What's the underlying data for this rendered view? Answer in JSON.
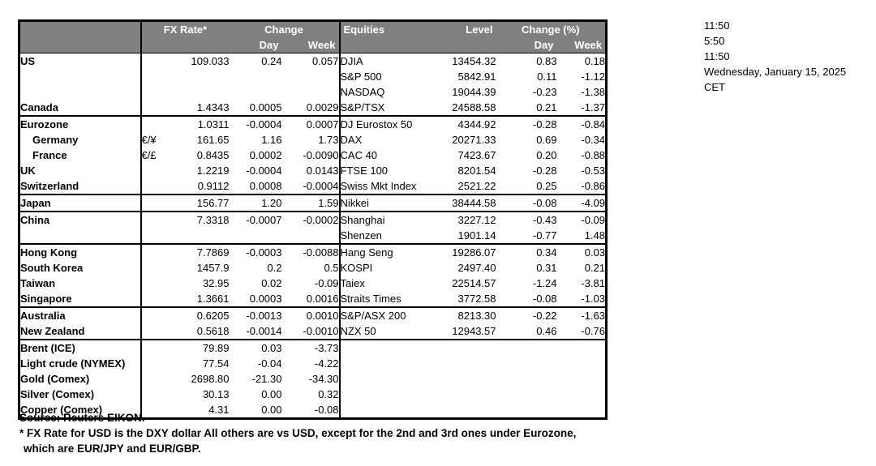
{
  "colors": {
    "header_bg": "#808080",
    "header_text": "#ffffff",
    "border": "#000000"
  },
  "header": {
    "fx_rate": "FX Rate*",
    "change": "Change",
    "day": "Day",
    "week": "Week",
    "equities": "Equities",
    "level": "Level",
    "change_pct": "Change (%)"
  },
  "rows": [
    {
      "label": "US",
      "pair": "",
      "fx": "109.033",
      "day": "0.24",
      "week": "0.057",
      "eq": "DJIA",
      "level": "13454.32",
      "eday": "0.83",
      "eweek": "0.18"
    },
    {
      "label": "",
      "pair": "",
      "fx": "",
      "day": "",
      "week": "",
      "eq": "S&P 500",
      "level": "5842.91",
      "eday": "0.11",
      "eweek": "-1.12"
    },
    {
      "label": "",
      "pair": "",
      "fx": "",
      "day": "",
      "week": "",
      "eq": "NASDAQ",
      "level": "19044.39",
      "eday": "-0.23",
      "eweek": "-1.38"
    },
    {
      "label": "Canada",
      "pair": "",
      "fx": "1.4343",
      "day": "0.0005",
      "week": "0.0029",
      "eq": "S&P/TSX",
      "level": "24588.58",
      "eday": "0.21",
      "eweek": "-1.37",
      "sep": true
    },
    {
      "label": "Eurozone",
      "pair": "",
      "fx": "1.0311",
      "day": "-0.0004",
      "week": "0.0007",
      "eq": "DJ Eurostox 50",
      "level": "4344.92",
      "eday": "-0.28",
      "eweek": "-0.84"
    },
    {
      "label": "Germany",
      "indent": true,
      "pair": "€/¥",
      "fx": "161.65",
      "day": "1.16",
      "week": "1.73",
      "eq": "DAX",
      "level": "20271.33",
      "eday": "0.69",
      "eweek": "-0.34"
    },
    {
      "label": "France",
      "indent": true,
      "pair": "€/£",
      "fx": "0.8435",
      "day": "0.0002",
      "week": "-0.0090",
      "eq": "CAC 40",
      "level": "7423.67",
      "eday": "0.20",
      "eweek": "-0.88"
    },
    {
      "label": "UK",
      "pair": "",
      "fx": "1.2219",
      "day": "-0.0004",
      "week": "0.0143",
      "eq": "FTSE 100",
      "level": "8201.54",
      "eday": "-0.28",
      "eweek": "-0.53"
    },
    {
      "label": "Switzerland",
      "pair": "",
      "fx": "0.9112",
      "day": "0.0008",
      "week": "-0.0004",
      "eq": "Swiss Mkt Index",
      "level": "2521.22",
      "eday": "0.25",
      "eweek": "-0.86",
      "sep": true
    },
    {
      "label": "Japan",
      "pair": "",
      "fx": "156.77",
      "day": "1.20",
      "week": "1.59",
      "eq": "Nikkei",
      "level": "38444.58",
      "eday": "-0.08",
      "eweek": "-4.09",
      "sep": true
    },
    {
      "label": "China",
      "pair": "",
      "fx": "7.3318",
      "day": "-0.0007",
      "week": "-0.0002",
      "eq": "Shanghai",
      "level": "3227.12",
      "eday": "-0.43",
      "eweek": "-0.09"
    },
    {
      "label": "",
      "pair": "",
      "fx": "",
      "day": "",
      "week": "",
      "eq": "Shenzen",
      "level": "1901.14",
      "eday": "-0.77",
      "eweek": "1.48",
      "sep": true
    },
    {
      "label": "Hong Kong",
      "pair": "",
      "fx": "7.7869",
      "day": "-0.0003",
      "week": "-0.0088",
      "eq": "Hang Seng",
      "level": "19286.07",
      "eday": "0.34",
      "eweek": "0.03"
    },
    {
      "label": "South Korea",
      "pair": "",
      "fx": "1457.9",
      "day": "0.2",
      "week": "0.5",
      "eq": "KOSPI",
      "level": "2497.40",
      "eday": "0.31",
      "eweek": "0.21"
    },
    {
      "label": "Taiwan",
      "pair": "",
      "fx": "32.95",
      "day": "0.02",
      "week": "-0.09",
      "eq": "Taiex",
      "level": "22514.57",
      "eday": "-1.24",
      "eweek": "-3.81"
    },
    {
      "label": "Singapore",
      "pair": "",
      "fx": "1.3661",
      "day": "0.0003",
      "week": "0.0016",
      "eq": "Straits Times",
      "level": "3772.58",
      "eday": "-0.08",
      "eweek": "-1.03",
      "sep": true
    },
    {
      "label": "Australia",
      "pair": "",
      "fx": "0.6205",
      "day": "-0.0013",
      "week": "0.0010",
      "eq": "S&P/ASX 200",
      "level": "8213.30",
      "eday": "-0.22",
      "eweek": "-1.63"
    },
    {
      "label": "New Zealand",
      "pair": "",
      "fx": "0.5618",
      "day": "-0.0014",
      "week": "-0.0010",
      "eq": "NZX 50",
      "level": "12943.57",
      "eday": "0.46",
      "eweek": "-0.76",
      "sep": true
    },
    {
      "label": "Brent (ICE)",
      "pair": "",
      "fx": "79.89",
      "day": "0.03",
      "week": "-3.73",
      "eq": "",
      "level": "",
      "eday": "",
      "eweek": ""
    },
    {
      "label": "Light crude (NYMEX)",
      "pair": "",
      "fx": "77.54",
      "day": "-0.04",
      "week": "-4.22",
      "eq": "",
      "level": "",
      "eday": "",
      "eweek": ""
    },
    {
      "label": "Gold (Comex)",
      "pair": "",
      "fx": "2698.80",
      "day": "-21.30",
      "week": "-34.30",
      "eq": "",
      "level": "",
      "eday": "",
      "eweek": ""
    },
    {
      "label": "Silver (Comex)",
      "pair": "",
      "fx": "30.13",
      "day": "0.00",
      "week": "0.32",
      "eq": "",
      "level": "",
      "eday": "",
      "eweek": ""
    },
    {
      "label": "Copper (Comex)",
      "pair": "",
      "fx": "4.31",
      "day": "0.00",
      "week": "-0.08",
      "eq": "",
      "level": "",
      "eday": "",
      "eweek": ""
    }
  ],
  "timestamps": [
    "11:50",
    "5:50",
    "11:50",
    "Wednesday, January 15, 2025",
    "CET"
  ],
  "footnotes": {
    "source": "Source:  Reuters EIKON.",
    "note1": "* FX Rate for USD is the DXY dollar  All others are vs USD, except for the 2nd and 3rd ones under Eurozone,",
    "note2": "which are EUR/JPY and EUR/GBP."
  }
}
